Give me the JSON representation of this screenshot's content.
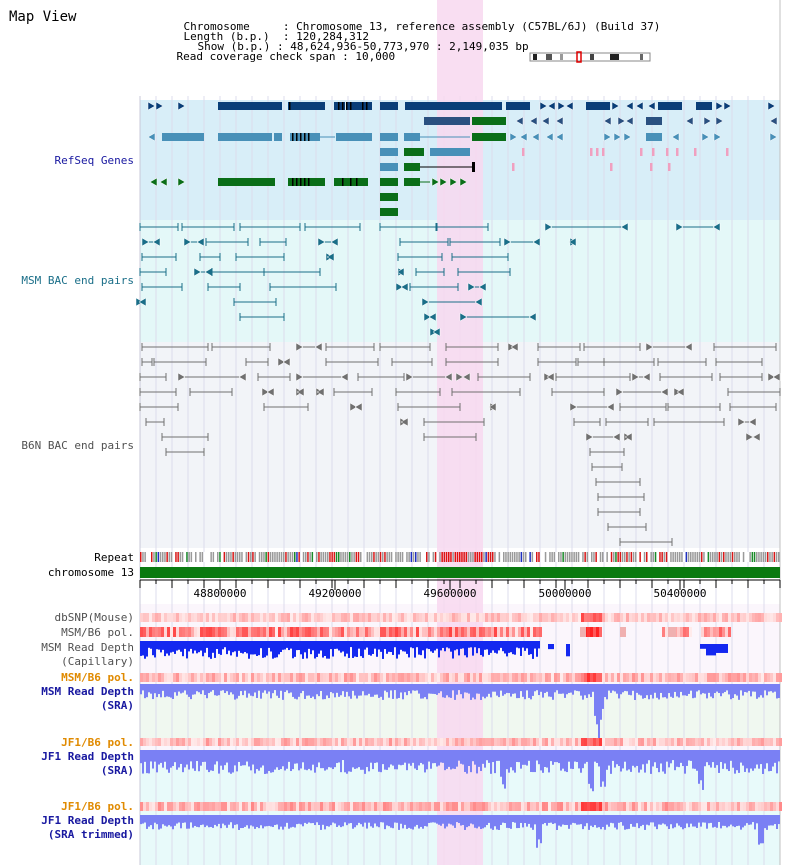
{
  "view": {
    "title": "Map View",
    "chromosome_key": "Chromosome",
    "chromosome_value": "Chromosome 13, reference assembly (C57BL/6J) (Build 37)",
    "length_key": "Length (b.p.)",
    "length_value": "120,284,312",
    "show_key": "Show (b.p.)",
    "show_value": "48,624,936-50,773,970 : 2,149,035 bp",
    "coverage_key": "Read coverage check span",
    "coverage_value": "10,000"
  },
  "tracks": {
    "refseq": "RefSeq Genes",
    "msm_bac": "MSM BAC end pairs",
    "b6n_bac": "B6N BAC end pairs",
    "repeat": "Repeat",
    "chromosome": "chromosome 13",
    "dbsnp": "dbSNP(Mouse)",
    "msm_b6_pol_1": "MSM/B6 pol.",
    "msm_depth_cap_1": "MSM Read Depth",
    "msm_depth_cap_2": "(Capillary)",
    "msm_b6_pol_2": "MSM/B6 pol.",
    "msm_depth_sra_1": "MSM Read Depth",
    "msm_depth_sra_2": "(SRA)",
    "jf1_b6_pol_1": "JF1/B6 pol.",
    "jf1_depth_sra_1": "JF1 Read Depth",
    "jf1_depth_sra_2": "(SRA)",
    "jf1_b6_pol_2": "JF1/B6 pol.",
    "jf1_depth_trim_1": "JF1 Read Depth",
    "jf1_depth_trim_2": "(SRA trimmed)"
  },
  "axis": {
    "ticks": [
      "48800000",
      "49200000",
      "49600000",
      "50000000",
      "50400000"
    ]
  },
  "colors": {
    "highlight": "#f8d8f0",
    "refseq_bg": "#d8eef8",
    "msm_bg": "#e4f8f8",
    "b6n_bg": "#f2f4f8",
    "gene_dark": "#0a3e78",
    "gene_mid": "#4890b8",
    "gene_green": "#0a6e18",
    "gene_pink": "#f0a0c0",
    "bac_teal": "#1a6e88",
    "bac_grey": "#707070",
    "chrom_green": "#0a7a10",
    "depth_blue": "#1428f0",
    "depth_light": "#7a80f4",
    "pol_red": "#e02020",
    "label_blue": "#1818a0",
    "label_orange": "#e08a00"
  }
}
